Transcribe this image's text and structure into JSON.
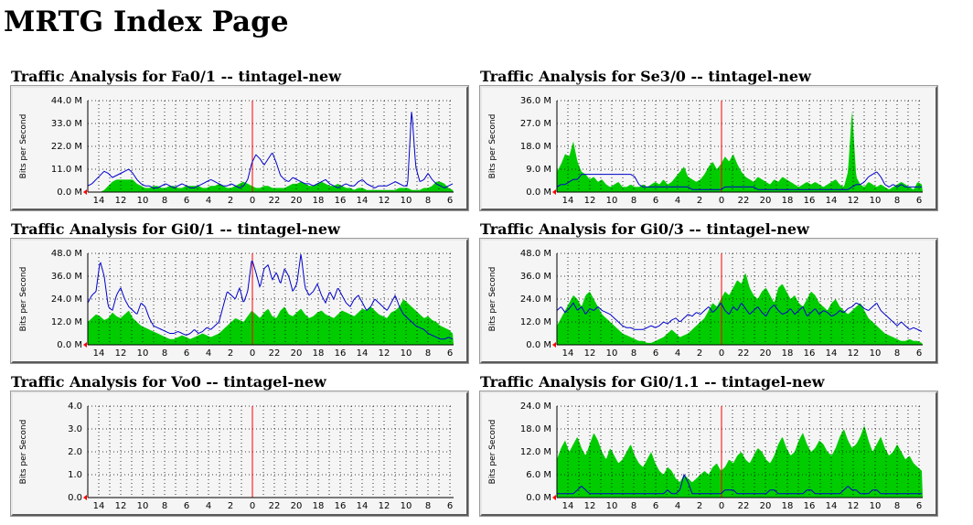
{
  "page": {
    "title": "MRTG Index Page"
  },
  "colors": {
    "in_area": "#00cc00",
    "out_line": "#0000cc",
    "grid": "#000000",
    "now_marker": "#ff0000",
    "axis_arrow": "#ff0000"
  },
  "axis_label": "Bits per Second",
  "chart_data": [
    {
      "type": "area",
      "title": "Traffic Analysis for Fa0/1 -- tintagel-new",
      "ylabel": "Bits per Second",
      "yticks": [
        "0.0 M",
        "11.0 M",
        "22.0 M",
        "33.0 M",
        "44.0 M"
      ],
      "ylim": [
        0,
        44
      ],
      "xticks": [
        "14",
        "12",
        "10",
        "8",
        "6",
        "4",
        "2",
        "0",
        "22",
        "20",
        "18",
        "16",
        "14",
        "12",
        "10",
        "8",
        "6"
      ],
      "in_series": [
        0,
        0,
        0,
        0,
        1,
        3,
        5,
        6,
        6,
        6,
        6,
        6,
        4,
        3,
        2,
        2,
        3,
        3,
        2,
        2,
        3,
        3,
        2,
        2,
        3,
        3,
        3,
        3,
        2,
        2,
        3,
        3,
        4,
        3,
        2,
        2,
        3,
        4,
        5,
        4,
        3,
        2,
        2,
        3,
        3,
        2,
        2,
        2,
        2,
        3,
        4,
        4,
        5,
        4,
        3,
        3,
        4,
        5,
        4,
        3,
        3,
        4,
        3,
        2,
        2,
        1,
        2,
        2,
        1,
        1,
        1,
        1,
        1,
        1,
        1,
        1,
        2,
        2,
        2,
        1,
        1,
        1,
        2,
        2,
        3,
        5,
        5,
        4,
        2,
        1
      ],
      "out_series": [
        3,
        4,
        6,
        8,
        10,
        9,
        7,
        8,
        9,
        10,
        11,
        9,
        6,
        4,
        3,
        3,
        2,
        2,
        3,
        4,
        3,
        2,
        3,
        4,
        3,
        2,
        2,
        3,
        4,
        5,
        6,
        5,
        4,
        3,
        3,
        4,
        3,
        2,
        3,
        6,
        14,
        18,
        16,
        13,
        16,
        19,
        14,
        8,
        6,
        5,
        7,
        6,
        5,
        4,
        4,
        3,
        4,
        5,
        6,
        4,
        3,
        2,
        3,
        4,
        3,
        3,
        5,
        6,
        4,
        3,
        2,
        3,
        3,
        3,
        4,
        5,
        4,
        3,
        3,
        40,
        12,
        5,
        6,
        9,
        6,
        4,
        3,
        2,
        3,
        4
      ]
    },
    {
      "type": "area",
      "title": "Traffic Analysis for Se3/0 -- tintagel-new",
      "ylabel": "Bits per Second",
      "yticks": [
        "0.0 M",
        "9.0 M",
        "18.0 M",
        "27.0 M",
        "36.0 M"
      ],
      "ylim": [
        0,
        36
      ],
      "xticks": [
        "14",
        "12",
        "10",
        "8",
        "6",
        "4",
        "2",
        "0",
        "22",
        "20",
        "18",
        "16",
        "14",
        "12",
        "10",
        "8",
        "6"
      ],
      "in_series": [
        8,
        11,
        15,
        14,
        20,
        12,
        8,
        7,
        5,
        6,
        4,
        5,
        3,
        2,
        3,
        4,
        2,
        2,
        3,
        2,
        2,
        3,
        2,
        3,
        4,
        3,
        5,
        3,
        4,
        6,
        8,
        10,
        6,
        5,
        4,
        5,
        7,
        10,
        12,
        9,
        11,
        14,
        12,
        15,
        11,
        8,
        6,
        5,
        4,
        6,
        5,
        4,
        3,
        5,
        4,
        6,
        5,
        4,
        3,
        2,
        3,
        4,
        3,
        4,
        3,
        2,
        3,
        4,
        5,
        3,
        2,
        8,
        33,
        6,
        3,
        2,
        4,
        3,
        2,
        3,
        2,
        1,
        2,
        3,
        4,
        3,
        2,
        1,
        4,
        3
      ],
      "out_series": [
        2,
        3,
        3,
        4,
        5,
        5,
        7,
        7,
        7,
        7,
        7,
        7,
        7,
        7,
        7,
        7,
        7,
        7,
        7,
        6,
        3,
        2,
        2,
        2,
        2,
        2,
        2,
        2,
        2,
        2,
        2,
        2,
        2,
        1,
        1,
        1,
        1,
        1,
        1,
        1,
        1,
        2,
        2,
        2,
        2,
        2,
        2,
        2,
        2,
        1,
        1,
        1,
        1,
        1,
        1,
        1,
        1,
        1,
        1,
        1,
        1,
        1,
        1,
        1,
        1,
        1,
        1,
        1,
        1,
        1,
        1,
        1,
        2,
        3,
        3,
        4,
        6,
        7,
        8,
        6,
        3,
        2,
        3,
        2,
        3,
        2,
        2,
        2,
        2,
        2
      ]
    },
    {
      "type": "area",
      "title": "Traffic Analysis for Gi0/1 -- tintagel-new",
      "ylabel": "Bits per Second",
      "yticks": [
        "0.0 M",
        "12.0 M",
        "24.0 M",
        "36.0 M",
        "48.0 M"
      ],
      "ylim": [
        0,
        48
      ],
      "xticks": [
        "14",
        "12",
        "10",
        "8",
        "6",
        "4",
        "2",
        "0",
        "22",
        "20",
        "18",
        "16",
        "14",
        "12",
        "10",
        "8",
        "6"
      ],
      "in_series": [
        12,
        14,
        16,
        15,
        13,
        14,
        17,
        15,
        14,
        16,
        18,
        14,
        12,
        10,
        9,
        8,
        7,
        6,
        5,
        4,
        3,
        3,
        4,
        5,
        4,
        3,
        4,
        5,
        6,
        5,
        4,
        5,
        6,
        8,
        10,
        12,
        14,
        13,
        12,
        15,
        18,
        16,
        14,
        17,
        19,
        15,
        14,
        18,
        20,
        16,
        15,
        17,
        19,
        16,
        14,
        15,
        17,
        18,
        16,
        15,
        14,
        16,
        18,
        17,
        16,
        15,
        17,
        19,
        18,
        20,
        18,
        16,
        15,
        14,
        17,
        18,
        20,
        24,
        22,
        20,
        18,
        16,
        14,
        15,
        13,
        12,
        10,
        9,
        8,
        6
      ],
      "out_series": [
        22,
        26,
        28,
        44,
        36,
        20,
        18,
        26,
        30,
        24,
        20,
        18,
        16,
        22,
        20,
        14,
        10,
        9,
        8,
        7,
        6,
        6,
        7,
        6,
        5,
        6,
        8,
        6,
        7,
        9,
        8,
        10,
        12,
        20,
        28,
        26,
        24,
        30,
        22,
        28,
        45,
        38,
        30,
        40,
        42,
        34,
        38,
        32,
        40,
        36,
        28,
        32,
        48,
        30,
        26,
        28,
        32,
        26,
        22,
        28,
        24,
        30,
        26,
        22,
        20,
        24,
        26,
        22,
        18,
        20,
        24,
        22,
        20,
        18,
        22,
        26,
        20,
        16,
        14,
        12,
        10,
        9,
        8,
        6,
        5,
        4,
        3,
        3,
        4,
        3
      ]
    },
    {
      "type": "area",
      "title": "Traffic Analysis for Gi0/3 -- tintagel-new",
      "ylabel": "Bits per Second",
      "yticks": [
        "0.0 M",
        "12.0 M",
        "24.0 M",
        "36.0 M",
        "48.0 M"
      ],
      "ylim": [
        0,
        48
      ],
      "xticks": [
        "14",
        "12",
        "10",
        "8",
        "6",
        "4",
        "2",
        "0",
        "22",
        "20",
        "18",
        "16",
        "14",
        "12",
        "10",
        "8",
        "6"
      ],
      "in_series": [
        10,
        14,
        18,
        22,
        26,
        24,
        20,
        26,
        28,
        24,
        20,
        16,
        14,
        12,
        10,
        8,
        6,
        5,
        4,
        3,
        2,
        2,
        1,
        1,
        2,
        3,
        4,
        6,
        8,
        6,
        4,
        5,
        6,
        8,
        10,
        12,
        14,
        18,
        22,
        20,
        24,
        28,
        26,
        30,
        34,
        32,
        38,
        30,
        26,
        24,
        28,
        30,
        26,
        22,
        30,
        32,
        28,
        24,
        26,
        22,
        20,
        24,
        28,
        26,
        22,
        20,
        18,
        22,
        24,
        20,
        18,
        16,
        18,
        20,
        22,
        18,
        14,
        12,
        10,
        8,
        6,
        5,
        4,
        3,
        2,
        2,
        3,
        2,
        2,
        1
      ],
      "out_series": [
        18,
        20,
        17,
        19,
        22,
        18,
        20,
        16,
        19,
        18,
        20,
        18,
        17,
        16,
        14,
        12,
        10,
        9,
        9,
        8,
        8,
        8,
        9,
        10,
        9,
        10,
        12,
        11,
        13,
        14,
        12,
        14,
        16,
        15,
        17,
        16,
        18,
        20,
        17,
        19,
        22,
        18,
        16,
        20,
        18,
        22,
        19,
        16,
        18,
        20,
        17,
        15,
        19,
        21,
        18,
        16,
        17,
        19,
        16,
        18,
        20,
        15,
        17,
        19,
        16,
        18,
        17,
        15,
        16,
        18,
        17,
        19,
        20,
        22,
        21,
        19,
        18,
        20,
        22,
        18,
        16,
        14,
        12,
        10,
        12,
        10,
        8,
        9,
        8,
        7
      ]
    },
    {
      "type": "area",
      "title": "Traffic Analysis for Vo0 -- tintagel-new",
      "ylabel": "Bits per Second",
      "yticks": [
        "0.0",
        "1.0",
        "2.0",
        "3.0",
        "4.0"
      ],
      "ylim": [
        0,
        4
      ],
      "xticks": [
        "14",
        "12",
        "10",
        "8",
        "6",
        "4",
        "2",
        "0",
        "22",
        "20",
        "18",
        "16",
        "14",
        "12",
        "10",
        "8",
        "6"
      ],
      "in_series": [
        0
      ],
      "out_series": [
        0
      ]
    },
    {
      "type": "area",
      "title": "Traffic Analysis for Gi0/1.1 -- tintagel-new",
      "ylabel": "Bits per Second",
      "yticks": [
        "0.0 M",
        "6.0 M",
        "12.0 M",
        "18.0 M",
        "24.0 M"
      ],
      "ylim": [
        0,
        24
      ],
      "xticks": [
        "14",
        "12",
        "10",
        "8",
        "6",
        "4",
        "2",
        "0",
        "22",
        "20",
        "18",
        "16",
        "14",
        "12",
        "10",
        "8",
        "6"
      ],
      "in_series": [
        10,
        13,
        15,
        12,
        14,
        16,
        13,
        11,
        14,
        17,
        15,
        12,
        10,
        13,
        11,
        9,
        10,
        12,
        14,
        11,
        9,
        8,
        10,
        12,
        9,
        7,
        6,
        8,
        7,
        5,
        4,
        6,
        5,
        4,
        5,
        6,
        7,
        6,
        8,
        9,
        7,
        8,
        10,
        9,
        11,
        12,
        10,
        9,
        11,
        13,
        12,
        10,
        9,
        11,
        14,
        16,
        13,
        11,
        12,
        15,
        17,
        14,
        12,
        13,
        15,
        14,
        12,
        11,
        13,
        16,
        18,
        15,
        13,
        14,
        16,
        19,
        15,
        12,
        14,
        16,
        13,
        11,
        12,
        14,
        12,
        10,
        11,
        9,
        8,
        7
      ],
      "out_series": [
        1,
        1,
        1,
        1,
        1,
        2,
        3,
        2,
        1,
        1,
        1,
        1,
        1,
        1,
        1,
        1,
        1,
        1,
        1,
        1,
        1,
        1,
        1,
        1,
        1,
        1,
        1,
        2,
        1,
        1,
        2,
        6,
        4,
        1,
        1,
        1,
        1,
        1,
        1,
        1,
        1,
        2,
        2,
        2,
        1,
        1,
        1,
        1,
        1,
        1,
        1,
        1,
        2,
        2,
        1,
        1,
        1,
        1,
        1,
        1,
        1,
        2,
        2,
        1,
        1,
        1,
        1,
        1,
        1,
        1,
        2,
        3,
        2,
        2,
        1,
        1,
        1,
        2,
        2,
        1,
        1,
        1,
        1,
        1,
        1,
        1,
        1,
        1,
        1,
        1
      ]
    }
  ]
}
